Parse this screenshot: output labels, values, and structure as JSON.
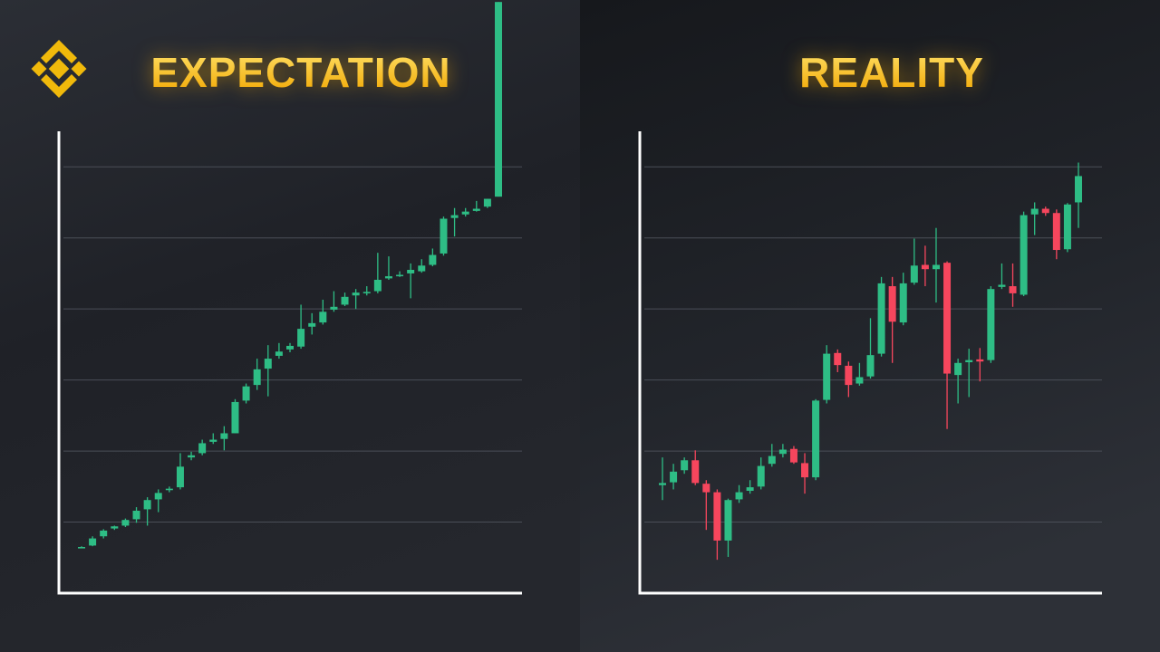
{
  "chart_data": [
    {
      "type": "candlestick",
      "title": "EXPECTATION",
      "up_color": "#2ebd85",
      "down_color": "#f6465d",
      "ylim": [
        0,
        6.5
      ],
      "yticks": [
        1,
        2,
        3,
        4,
        5,
        6
      ],
      "grid": true,
      "tick_labels": false,
      "open": [
        0.65,
        0.67,
        0.8,
        0.91,
        0.95,
        1.04,
        1.18,
        1.32,
        1.45,
        1.49,
        1.91,
        1.97,
        2.13,
        2.17,
        2.25,
        2.71,
        2.93,
        3.16,
        3.34,
        3.43,
        3.47,
        3.75,
        3.81,
        3.99,
        4.06,
        4.19,
        4.23,
        4.25,
        4.43,
        4.47,
        4.5,
        4.53,
        4.62,
        4.78,
        5.28,
        5.33,
        5.38,
        5.44,
        5.58
      ],
      "high": [
        0.66,
        0.8,
        0.9,
        0.95,
        1.05,
        1.21,
        1.35,
        1.46,
        1.5,
        1.97,
        1.99,
        2.16,
        2.25,
        2.35,
        2.73,
        2.95,
        3.3,
        3.49,
        3.52,
        3.52,
        4.06,
        3.94,
        4.13,
        4.25,
        4.23,
        4.28,
        4.32,
        4.79,
        4.74,
        4.53,
        4.64,
        4.7,
        4.85,
        5.3,
        5.42,
        5.42,
        5.52,
        5.55,
        8.32
      ],
      "low": [
        0.64,
        0.66,
        0.77,
        0.89,
        0.93,
        0.99,
        0.95,
        1.14,
        1.42,
        1.46,
        1.87,
        1.94,
        2.1,
        2.01,
        2.25,
        2.67,
        2.86,
        2.77,
        3.3,
        3.39,
        3.44,
        3.64,
        3.78,
        3.96,
        4.04,
        4.0,
        4.19,
        4.22,
        4.41,
        4.45,
        4.15,
        4.51,
        4.6,
        4.75,
        5.02,
        5.3,
        5.37,
        5.42,
        5.58
      ],
      "close": [
        0.65,
        0.77,
        0.88,
        0.94,
        1.03,
        1.16,
        1.31,
        1.41,
        1.47,
        1.78,
        1.94,
        2.11,
        2.16,
        2.25,
        2.69,
        2.91,
        3.15,
        3.3,
        3.4,
        3.48,
        3.72,
        3.8,
        3.96,
        4.03,
        4.17,
        4.23,
        4.24,
        4.41,
        4.46,
        4.48,
        4.55,
        4.61,
        4.76,
        5.27,
        5.32,
        5.37,
        5.41,
        5.55,
        8.32
      ]
    },
    {
      "type": "candlestick",
      "title": "REALITY",
      "up_color": "#2ebd85",
      "down_color": "#f6465d",
      "ylim": [
        0,
        6.5
      ],
      "yticks": [
        1,
        2,
        3,
        4,
        5,
        6
      ],
      "grid": true,
      "tick_labels": false,
      "open": [
        1.52,
        1.56,
        1.73,
        1.87,
        1.54,
        1.42,
        0.74,
        1.32,
        1.44,
        1.5,
        1.82,
        1.96,
        2.03,
        1.83,
        1.63,
        2.72,
        3.38,
        3.2,
        2.95,
        3.05,
        3.37,
        4.32,
        3.81,
        4.37,
        4.62,
        4.56,
        4.65,
        3.07,
        3.25,
        3.29,
        3.28,
        4.31,
        4.32,
        4.2,
        5.33,
        5.41,
        5.35,
        4.84,
        5.5
      ],
      "high": [
        1.91,
        1.82,
        1.91,
        2.01,
        1.59,
        1.46,
        1.33,
        1.52,
        1.59,
        1.91,
        2.1,
        2.1,
        2.07,
        1.97,
        2.73,
        3.49,
        3.43,
        3.26,
        3.24,
        3.87,
        4.45,
        4.45,
        4.51,
        4.99,
        4.89,
        5.14,
        4.67,
        3.3,
        3.44,
        3.45,
        4.32,
        4.64,
        4.64,
        5.37,
        5.5,
        5.44,
        5.4,
        5.49,
        6.06
      ],
      "low": [
        1.31,
        1.46,
        1.68,
        1.52,
        0.89,
        0.47,
        0.51,
        1.27,
        1.4,
        1.46,
        1.78,
        1.91,
        1.82,
        1.4,
        1.59,
        2.67,
        3.11,
        2.76,
        2.92,
        3.02,
        3.33,
        3.24,
        3.77,
        4.34,
        4.32,
        4.09,
        2.31,
        2.67,
        2.76,
        2.98,
        3.24,
        4.28,
        4.03,
        4.18,
        5.04,
        5.31,
        4.7,
        4.8,
        5.14
      ],
      "close": [
        1.55,
        1.71,
        1.87,
        1.55,
        1.42,
        0.74,
        1.31,
        1.42,
        1.49,
        1.79,
        1.93,
        2.02,
        1.84,
        1.63,
        2.71,
        3.37,
        3.21,
        2.93,
        3.04,
        3.35,
        4.36,
        3.82,
        4.36,
        4.61,
        4.56,
        4.62,
        3.09,
        3.24,
        3.28,
        3.26,
        4.28,
        4.34,
        4.22,
        5.32,
        5.41,
        5.35,
        4.83,
        5.47,
        5.87
      ]
    }
  ]
}
